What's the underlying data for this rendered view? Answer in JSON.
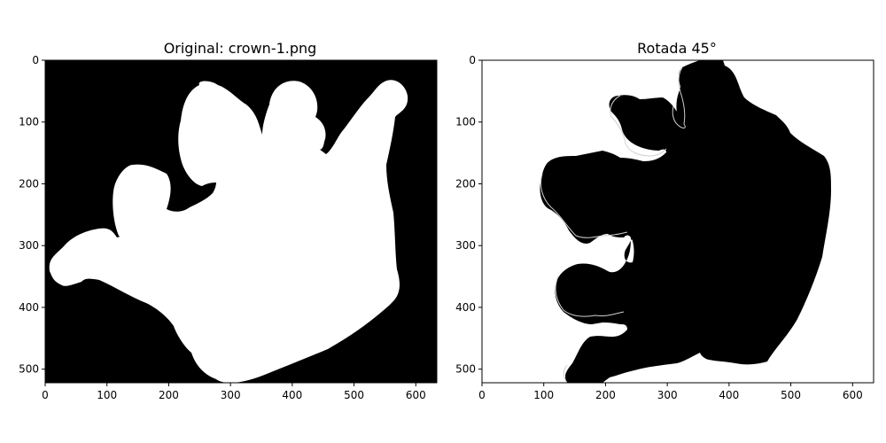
{
  "chart_data": [
    {
      "type": "image",
      "title": "Original: crown-1.png",
      "image_size": {
        "width": 634,
        "height": 522
      },
      "xlim": [
        0,
        634
      ],
      "ylim": [
        522,
        0
      ],
      "xticks": [
        0,
        100,
        200,
        300,
        400,
        500,
        600
      ],
      "yticks": [
        0,
        100,
        200,
        300,
        400,
        500
      ],
      "colors": {
        "background": "#000000",
        "foreground": "#ffffff"
      }
    },
    {
      "type": "image",
      "title": "Rotada 45°",
      "image_size": {
        "width": 634,
        "height": 522
      },
      "xlim": [
        0,
        634
      ],
      "ylim": [
        522,
        0
      ],
      "xticks": [
        0,
        100,
        200,
        300,
        400,
        500,
        600
      ],
      "yticks": [
        0,
        100,
        200,
        300,
        400,
        500
      ],
      "colors": {
        "background": "#ffffff",
        "foreground": "#000000",
        "edge": "#cccccc"
      }
    }
  ]
}
